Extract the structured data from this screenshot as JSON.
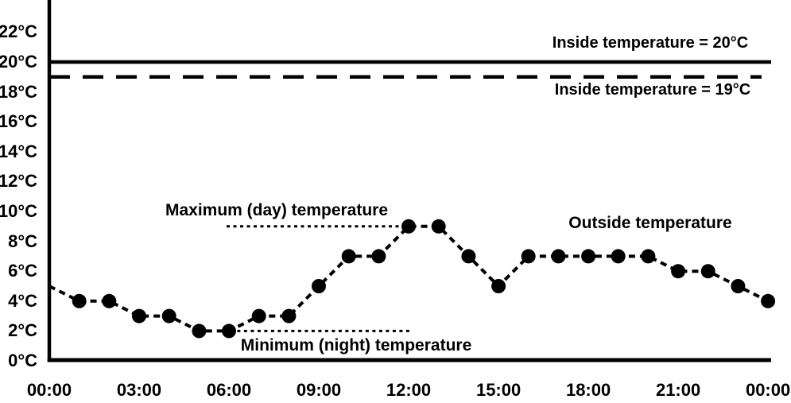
{
  "chart_data": {
    "type": "line",
    "title": "",
    "colors": {
      "ink": "#000000",
      "background": "#ffffff"
    },
    "grid": false,
    "xlim_hours": [
      0,
      24
    ],
    "ylim": [
      0,
      24
    ],
    "x_tick_hours": [
      0,
      3,
      6,
      9,
      12,
      15,
      18,
      21,
      24
    ],
    "x_tick_labels": [
      "00:00",
      "03:00",
      "06:00",
      "09:00",
      "12:00",
      "15:00",
      "18:00",
      "21:00",
      "00:00"
    ],
    "y_tick_values": [
      0,
      2,
      4,
      6,
      8,
      10,
      12,
      14,
      16,
      18,
      20,
      22
    ],
    "y_tick_labels": [
      "0°C",
      "2°C",
      "4°C",
      "6°C",
      "8°C",
      "10°C",
      "12°C",
      "14°C",
      "16°C",
      "18°C",
      "20°C",
      "22°C"
    ],
    "series": [
      {
        "name": "outside-temperature",
        "label": "Outside temperature",
        "type": "line-dashed-markers",
        "x_hours": [
          0,
          1,
          2,
          3,
          4,
          5,
          6,
          7,
          8,
          9,
          10,
          11,
          12,
          13,
          14,
          15,
          16,
          17,
          18,
          19,
          20,
          21,
          22,
          23,
          24
        ],
        "values": [
          5,
          4,
          4,
          3,
          3,
          2,
          2,
          3,
          3,
          5,
          7,
          7,
          9,
          9,
          7,
          5,
          7,
          7,
          7,
          7,
          7,
          6,
          6,
          5,
          4
        ]
      },
      {
        "name": "inside-temperature-20",
        "label": "Inside temperature = 20°C",
        "type": "hline-solid",
        "value": 20
      },
      {
        "name": "inside-temperature-19",
        "label": "Inside temperature = 19°C",
        "type": "hline-dashed",
        "value": 19
      }
    ],
    "annotations": [
      {
        "name": "maximum-day-temperature",
        "text": "Maximum (day) temperature",
        "line_temp": 9,
        "line_hours": [
          5.92,
          11.81
        ]
      },
      {
        "name": "minimum-night-temperature",
        "text": "Minimum (night) temperature",
        "line_temp": 2,
        "line_hours": [
          6.05,
          12.03
        ]
      }
    ]
  }
}
